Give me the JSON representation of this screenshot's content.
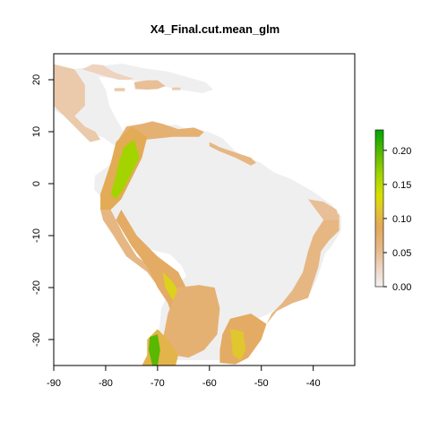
{
  "title": "X4_Final.cut.mean_glm",
  "colors": {
    "land_grey": "#EFEFEF",
    "frame": "#000000",
    "scale": [
      "#F2F2F2",
      "#EED4C2",
      "#E6B887",
      "#E3A85A",
      "#E2C237",
      "#D8E000",
      "#9FD300",
      "#55B800",
      "#00A600"
    ]
  },
  "chart_data": {
    "type": "heatmap",
    "title": "X4_Final.cut.mean_glm",
    "xlabel": "",
    "ylabel": "",
    "xlim": [
      -90,
      -32
    ],
    "ylim": [
      -35,
      25
    ],
    "x_ticks": [
      -90,
      -80,
      -70,
      -60,
      -50,
      -40
    ],
    "y_ticks": [
      -30,
      -20,
      -10,
      0,
      10,
      20
    ],
    "x_tick_labels": [
      "-90",
      "-80",
      "-70",
      "-60",
      "-50",
      "-40"
    ],
    "y_tick_labels": [
      "-30",
      "-20",
      "-10",
      "0",
      "10",
      "20"
    ],
    "legend": {
      "placement": "right",
      "min": 0.0,
      "max": 0.23,
      "ticks": [
        0.0,
        0.05,
        0.1,
        0.15,
        0.2
      ],
      "tick_labels": [
        "0.00",
        "0.05",
        "0.10",
        "0.15",
        "0.20"
      ]
    },
    "regions": [
      {
        "name": "mexico",
        "value": 0.04,
        "pts": [
          [
            -90,
            23
          ],
          [
            -86,
            22
          ],
          [
            -84,
            19
          ],
          [
            -84,
            15
          ],
          [
            -86,
            13
          ],
          [
            -84,
            11
          ],
          [
            -82,
            10
          ],
          [
            -81,
            8.5
          ],
          [
            -83,
            8
          ],
          [
            -85,
            10
          ],
          [
            -87,
            12
          ],
          [
            -89,
            14
          ],
          [
            -90,
            15
          ]
        ]
      },
      {
        "name": "cuba",
        "value": 0.03,
        "pts": [
          [
            -79.5,
            20.5
          ],
          [
            -77.5,
            20
          ],
          [
            -75.5,
            20
          ],
          [
            -74.5,
            20.2
          ],
          [
            -76.5,
            20.8
          ],
          [
            -78.5,
            21.5
          ],
          [
            -80.5,
            22.8
          ],
          [
            -82.5,
            23
          ],
          [
            -84.5,
            22
          ]
        ]
      },
      {
        "name": "hispaniola",
        "value": 0.05,
        "pts": [
          [
            -74.5,
            19.5
          ],
          [
            -72,
            19.9
          ],
          [
            -70,
            19.9
          ],
          [
            -68.5,
            18.8
          ],
          [
            -70,
            18.2
          ],
          [
            -72,
            18.1
          ],
          [
            -74.3,
            18.2
          ]
        ]
      },
      {
        "name": "jamaica",
        "value": 0.04,
        "pts": [
          [
            -78.3,
            18.4
          ],
          [
            -76.3,
            18.4
          ],
          [
            -76.3,
            17.8
          ],
          [
            -78.3,
            17.8
          ]
        ]
      },
      {
        "name": "puerto-rico",
        "value": 0.04,
        "pts": [
          [
            -67.2,
            18.5
          ],
          [
            -65.6,
            18.5
          ],
          [
            -65.6,
            18
          ],
          [
            -67.2,
            18
          ]
        ]
      },
      {
        "name": "caribbean-coast",
        "value": 0.07,
        "pts": [
          [
            -77.5,
            8.5
          ],
          [
            -76,
            11
          ],
          [
            -73,
            11.5
          ],
          [
            -71,
            12
          ],
          [
            -69,
            11.5
          ],
          [
            -66,
            10.5
          ],
          [
            -63,
            10.8
          ],
          [
            -61,
            10
          ],
          [
            -62,
            9
          ],
          [
            -67,
            9
          ],
          [
            -72,
            8.5
          ],
          [
            -76,
            7.5
          ]
        ]
      },
      {
        "name": "guianas-coast",
        "value": 0.06,
        "pts": [
          [
            -60,
            8
          ],
          [
            -58,
            7
          ],
          [
            -55,
            6
          ],
          [
            -52,
            5
          ],
          [
            -51,
            4
          ],
          [
            -52,
            3.5
          ],
          [
            -55,
            5
          ],
          [
            -58,
            6.2
          ],
          [
            -60,
            7.2
          ]
        ]
      },
      {
        "name": "andes-north",
        "value": 0.09,
        "pts": [
          [
            -78,
            8
          ],
          [
            -75,
            11
          ],
          [
            -72,
            9
          ],
          [
            -73,
            5
          ],
          [
            -75,
            1
          ],
          [
            -77,
            -3
          ],
          [
            -79,
            -5
          ],
          [
            -81,
            -5
          ],
          [
            -81,
            -2
          ],
          [
            -80,
            1
          ],
          [
            -79,
            4
          ]
        ]
      },
      {
        "name": "andes-north-core",
        "value": 0.17,
        "pts": [
          [
            -76.5,
            7
          ],
          [
            -74.5,
            8.5
          ],
          [
            -73.5,
            5
          ],
          [
            -75,
            2
          ],
          [
            -76.5,
            -1
          ],
          [
            -78,
            -3
          ],
          [
            -79,
            -2
          ],
          [
            -78.2,
            1
          ],
          [
            -77.5,
            4
          ]
        ]
      },
      {
        "name": "peru-coast",
        "value": 0.06,
        "pts": [
          [
            -81,
            -5
          ],
          [
            -79,
            -5
          ],
          [
            -76.5,
            -10
          ],
          [
            -74,
            -14
          ],
          [
            -70,
            -17
          ],
          [
            -69,
            -18
          ],
          [
            -70.5,
            -19
          ],
          [
            -72,
            -17
          ],
          [
            -76,
            -14
          ],
          [
            -78.5,
            -10
          ],
          [
            -80.5,
            -7
          ]
        ]
      },
      {
        "name": "central-andes",
        "value": 0.08,
        "pts": [
          [
            -77,
            -5
          ],
          [
            -74,
            -10
          ],
          [
            -70,
            -14
          ],
          [
            -66,
            -17
          ],
          [
            -64,
            -21
          ],
          [
            -63,
            -24
          ],
          [
            -65,
            -27
          ],
          [
            -67,
            -26
          ],
          [
            -68,
            -23
          ],
          [
            -70,
            -20
          ],
          [
            -72,
            -16
          ],
          [
            -75,
            -12
          ],
          [
            -78,
            -7
          ]
        ]
      },
      {
        "name": "central-andes-core",
        "value": 0.13,
        "pts": [
          [
            -69,
            -17
          ],
          [
            -67,
            -19
          ],
          [
            -65.5,
            -21.5
          ],
          [
            -65.5,
            -23.5
          ],
          [
            -67,
            -22.5
          ],
          [
            -68.5,
            -20
          ]
        ]
      },
      {
        "name": "gran-chaco",
        "value": 0.07,
        "pts": [
          [
            -66,
            -20
          ],
          [
            -62,
            -19.5
          ],
          [
            -59,
            -20
          ],
          [
            -58,
            -24
          ],
          [
            -58.5,
            -29
          ],
          [
            -61,
            -32
          ],
          [
            -64,
            -33.5
          ],
          [
            -67,
            -33
          ],
          [
            -69,
            -30
          ],
          [
            -68,
            -25
          ]
        ]
      },
      {
        "name": "southern-cone",
        "value": 0.1,
        "pts": [
          [
            -72,
            -30
          ],
          [
            -70,
            -28
          ],
          [
            -68,
            -30
          ],
          [
            -66,
            -33
          ],
          [
            -66.5,
            -35
          ],
          [
            -73,
            -35
          ],
          [
            -72,
            -33
          ]
        ]
      },
      {
        "name": "southern-cone-core",
        "value": 0.2,
        "pts": [
          [
            -71.5,
            -29.5
          ],
          [
            -70,
            -29
          ],
          [
            -69.5,
            -32
          ],
          [
            -70,
            -35
          ],
          [
            -71,
            -35
          ],
          [
            -71.7,
            -32
          ]
        ]
      },
      {
        "name": "uruguay-brazil-south",
        "value": 0.08,
        "pts": [
          [
            -56,
            -26
          ],
          [
            -52,
            -25
          ],
          [
            -49,
            -27
          ],
          [
            -50,
            -30
          ],
          [
            -52.5,
            -33.5
          ],
          [
            -55,
            -34.8
          ],
          [
            -58,
            -34.5
          ],
          [
            -58,
            -32
          ],
          [
            -57.5,
            -29
          ]
        ]
      },
      {
        "name": "uruguay-core",
        "value": 0.12,
        "pts": [
          [
            -56,
            -28
          ],
          [
            -53.5,
            -28.5
          ],
          [
            -53,
            -32
          ],
          [
            -54,
            -34
          ],
          [
            -55.5,
            -33
          ]
        ]
      },
      {
        "name": "atlantic-coast",
        "value": 0.06,
        "pts": [
          [
            -49,
            -27
          ],
          [
            -47,
            -24.5
          ],
          [
            -44,
            -23
          ],
          [
            -41,
            -22
          ],
          [
            -40,
            -19
          ],
          [
            -39,
            -16
          ],
          [
            -38.5,
            -13
          ],
          [
            -37,
            -11
          ],
          [
            -35,
            -9
          ],
          [
            -35,
            -6
          ],
          [
            -36.5,
            -5
          ],
          [
            -38,
            -7
          ],
          [
            -40,
            -10
          ],
          [
            -41,
            -13
          ],
          [
            -42,
            -17
          ],
          [
            -44,
            -20.5
          ],
          [
            -46,
            -23
          ],
          [
            -48,
            -25
          ]
        ]
      },
      {
        "name": "brazil-northeast",
        "value": 0.05,
        "pts": [
          [
            -41,
            -3
          ],
          [
            -38,
            -3.5
          ],
          [
            -35.5,
            -5
          ],
          [
            -35,
            -7
          ],
          [
            -38,
            -7
          ]
        ]
      }
    ]
  }
}
